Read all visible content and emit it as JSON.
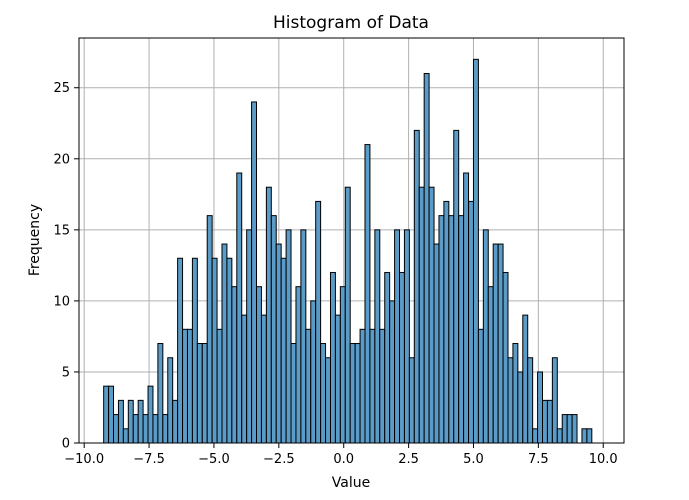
{
  "chart_data": {
    "type": "bar",
    "title": "Histogram of Data",
    "xlabel": "Value",
    "ylabel": "Frequency",
    "xlim": [
      -10.2,
      10.8
    ],
    "ylim": [
      0,
      28.5
    ],
    "grid": true,
    "bar_color": "#5b9bc8",
    "edge_color": "#000000",
    "x_ticks": [
      -10.0,
      -7.5,
      -5.0,
      -2.5,
      0.0,
      2.5,
      5.0,
      7.5,
      10.0
    ],
    "x_tick_labels": [
      "−10.0",
      "−7.5",
      "−5.0",
      "−2.5",
      "0.0",
      "2.5",
      "5.0",
      "7.5",
      "10.0"
    ],
    "y_ticks": [
      0,
      5,
      10,
      15,
      20,
      25
    ],
    "y_tick_labels": [
      "0",
      "5",
      "10",
      "15",
      "20",
      "25"
    ],
    "bin_start": -9.25,
    "bin_width": 0.19,
    "values": [
      4,
      4,
      2,
      3,
      1,
      3,
      2,
      3,
      2,
      4,
      2,
      7,
      2,
      6,
      3,
      13,
      8,
      8,
      13,
      7,
      7,
      16,
      13,
      8,
      14,
      13,
      11,
      19,
      9,
      15,
      24,
      11,
      9,
      18,
      16,
      14,
      13,
      15,
      7,
      11,
      15,
      8,
      10,
      17,
      7,
      6,
      12,
      9,
      11,
      18,
      7,
      7,
      8,
      21,
      8,
      15,
      8,
      12,
      10,
      15,
      12,
      15,
      6,
      22,
      18,
      26,
      18,
      14,
      16,
      17,
      16,
      22,
      16,
      19,
      17,
      27,
      8,
      15,
      11,
      14,
      14,
      12,
      6,
      7,
      5,
      9,
      6,
      1,
      5,
      3,
      3,
      6,
      1,
      2,
      2,
      2,
      0,
      1,
      1
    ]
  }
}
